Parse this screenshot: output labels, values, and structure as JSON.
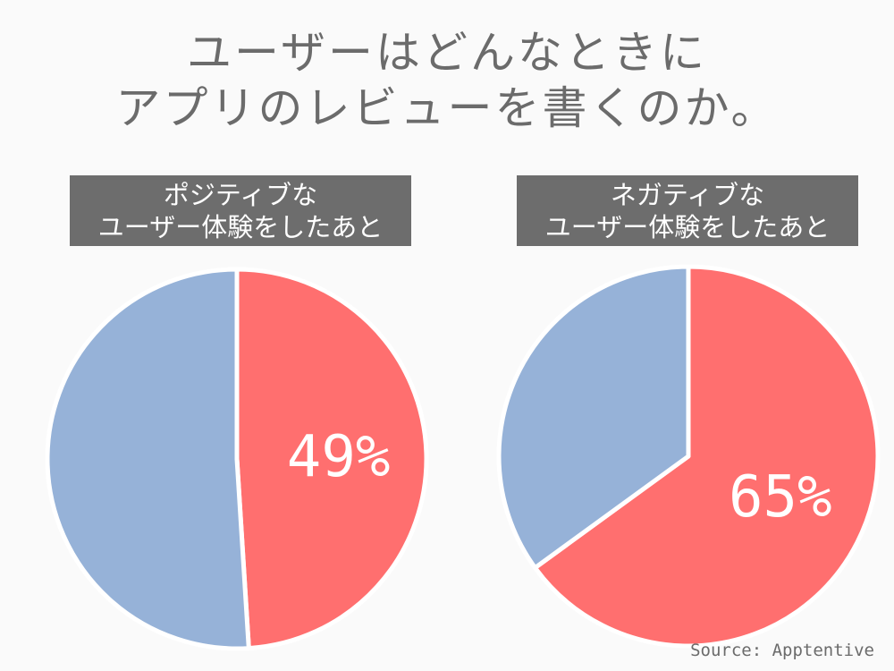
{
  "title": {
    "line1": "ユーザーはどんなときに",
    "line2": "アプリのレビューを書くのか。"
  },
  "source": "Source: Apptentive",
  "colors": {
    "review": "#ff6f6f",
    "other": "#96b2d8",
    "label_bg": "#6d6d6d",
    "text": "#6b6b6b"
  },
  "chart_data": [
    {
      "type": "pie",
      "title_line1": "ポジティブな",
      "title_line2": "ユーザー体験をしたあと",
      "slices": [
        {
          "value": 49,
          "color": "#ff6f6f",
          "label": "49%"
        },
        {
          "value": 51,
          "color": "#96b2d8",
          "label": ""
        }
      ]
    },
    {
      "type": "pie",
      "title_line1": "ネガティブな",
      "title_line2": "ユーザー体験をしたあと",
      "slices": [
        {
          "value": 65,
          "color": "#ff6f6f",
          "label": "65%"
        },
        {
          "value": 35,
          "color": "#96b2d8",
          "label": ""
        }
      ]
    }
  ]
}
